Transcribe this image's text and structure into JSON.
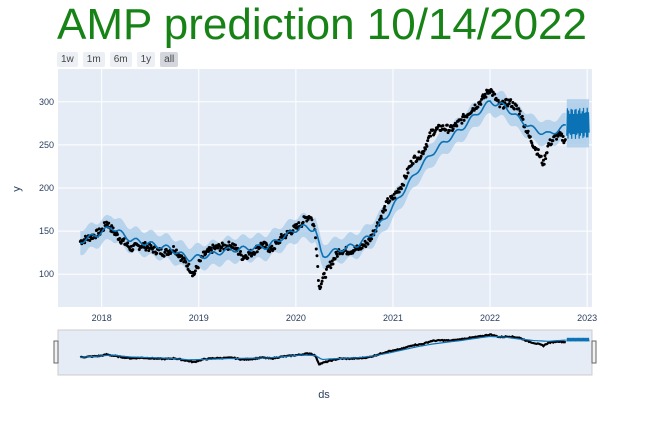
{
  "title": "AMP prediction 10/14/2022",
  "range_selector": {
    "buttons": [
      "1w",
      "1m",
      "6m",
      "1y",
      "all"
    ],
    "active": "all"
  },
  "colors": {
    "title": "#178317",
    "plot_bg": "#e5ecf6",
    "band": "#a8cbe8",
    "forecast_line": "#0b72b5",
    "actual_points": "#000000"
  },
  "chart_data": {
    "type": "line",
    "title": "AMP prediction 10/14/2022",
    "xlabel": "ds",
    "ylabel": "y",
    "xlim": [
      2017.55,
      2023.05
    ],
    "ylim": [
      62,
      338
    ],
    "xticks": [
      2018,
      2019,
      2020,
      2021,
      2022,
      2023
    ],
    "xtick_labels": [
      "2018",
      "2019",
      "2020",
      "2021",
      "2022",
      "2023"
    ],
    "yticks": [
      100,
      150,
      200,
      250,
      300
    ],
    "yticks_range": [
      0,
      350
    ],
    "grid": true,
    "forecast_start": 2022.79,
    "series": [
      {
        "role": "actual",
        "style": "points",
        "x": [
          2017.78,
          2017.9,
          2018.0,
          2018.05,
          2018.12,
          2018.2,
          2018.3,
          2018.42,
          2018.55,
          2018.65,
          2018.75,
          2018.83,
          2018.9,
          2018.95,
          2019.0,
          2019.05,
          2019.15,
          2019.25,
          2019.35,
          2019.45,
          2019.55,
          2019.65,
          2019.75,
          2019.85,
          2019.95,
          2020.05,
          2020.1,
          2020.15,
          2020.2,
          2020.24,
          2020.28,
          2020.35,
          2020.45,
          2020.55,
          2020.65,
          2020.75,
          2020.85,
          2020.95,
          2021.0,
          2021.1,
          2021.2,
          2021.3,
          2021.4,
          2021.5,
          2021.6,
          2021.7,
          2021.8,
          2021.9,
          2022.0,
          2022.05,
          2022.1,
          2022.2,
          2022.3,
          2022.4,
          2022.45,
          2022.5,
          2022.55,
          2022.6,
          2022.7,
          2022.78
        ],
        "y": [
          138,
          144,
          150,
          160,
          150,
          140,
          130,
          134,
          128,
          125,
          130,
          118,
          108,
          100,
          112,
          122,
          130,
          132,
          134,
          120,
          125,
          135,
          128,
          142,
          150,
          158,
          165,
          168,
          150,
          85,
          95,
          110,
          128,
          127,
          130,
          138,
          160,
          185,
          188,
          205,
          232,
          240,
          265,
          270,
          268,
          278,
          290,
          300,
          315,
          305,
          295,
          300,
          290,
          260,
          250,
          240,
          228,
          250,
          262,
          255
        ]
      },
      {
        "role": "forecast",
        "style": "line",
        "x": [
          2017.78,
          2017.95,
          2018.1,
          2018.3,
          2018.5,
          2018.7,
          2018.9,
          2019.1,
          2019.3,
          2019.5,
          2019.7,
          2019.9,
          2020.05,
          2020.2,
          2020.27,
          2020.35,
          2020.5,
          2020.65,
          2020.8,
          2020.95,
          2021.1,
          2021.25,
          2021.4,
          2021.55,
          2021.7,
          2021.85,
          2022.0,
          2022.15,
          2022.3,
          2022.45,
          2022.6,
          2022.79
        ],
        "y": [
          138,
          146,
          155,
          140,
          135,
          130,
          118,
          122,
          128,
          130,
          132,
          145,
          155,
          152,
          120,
          125,
          130,
          135,
          148,
          170,
          195,
          220,
          240,
          255,
          268,
          285,
          300,
          295,
          280,
          268,
          262,
          272
        ]
      },
      {
        "role": "forecast_tail",
        "style": "oscillating_line",
        "x": [
          2022.79,
          2023.02
        ],
        "center": 275,
        "amplitude": 18,
        "cycles": 18
      }
    ],
    "uncertainty_band": {
      "x": [
        2017.78,
        2017.95,
        2018.1,
        2018.3,
        2018.5,
        2018.7,
        2018.9,
        2019.1,
        2019.3,
        2019.5,
        2019.7,
        2019.9,
        2020.05,
        2020.2,
        2020.27,
        2020.35,
        2020.5,
        2020.65,
        2020.8,
        2020.95,
        2021.1,
        2021.25,
        2021.4,
        2021.55,
        2021.7,
        2021.85,
        2022.0,
        2022.15,
        2022.3,
        2022.45,
        2022.6,
        2022.79
      ],
      "halfwidth": 14
    }
  },
  "rangeslider": {
    "visible": true
  }
}
